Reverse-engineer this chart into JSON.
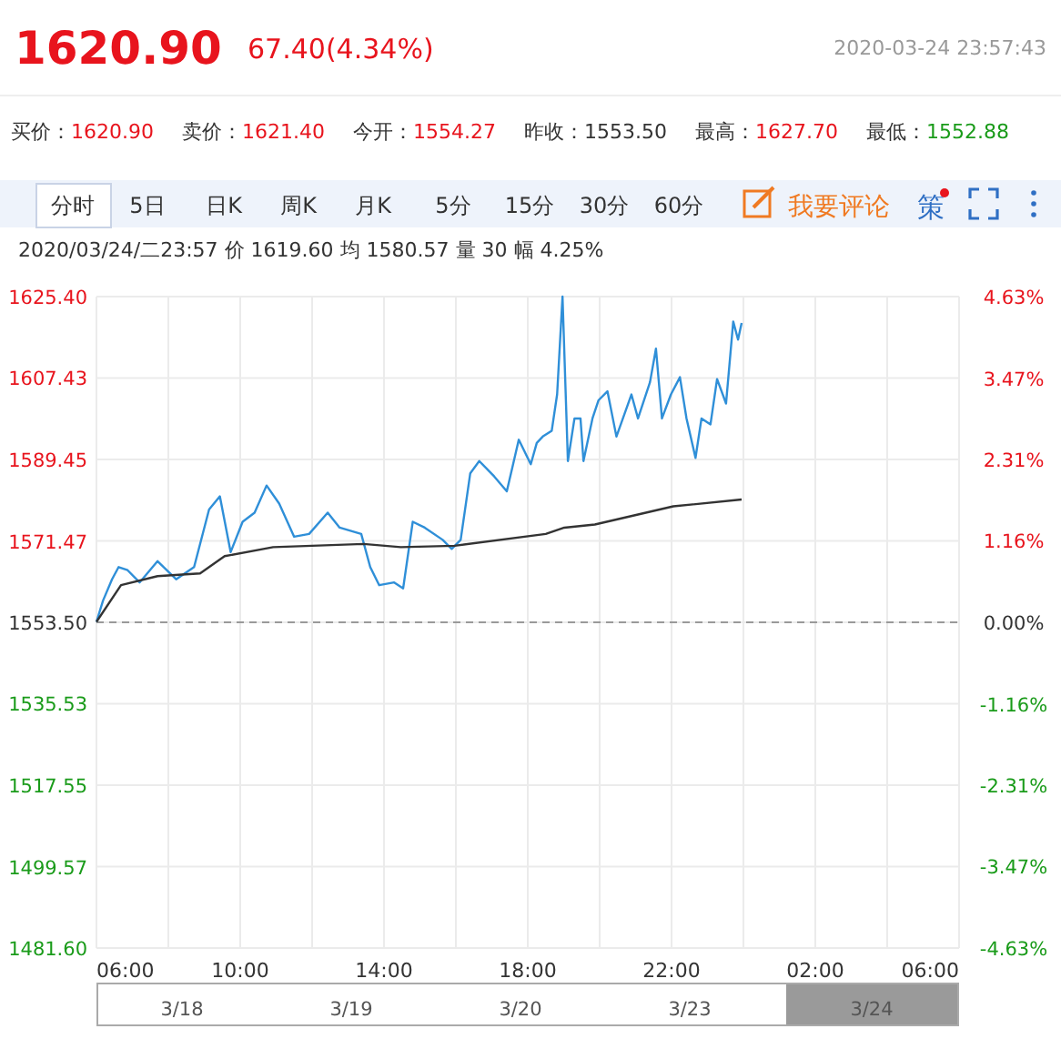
{
  "chart_data": {
    "type": "line",
    "title": "1620.90",
    "subtitle": "67.40(4.34%)",
    "annotations": [
      "2020-03-24 23:57:43",
      "买价：1620.90",
      "卖价：1621.40",
      "今开：1554.27",
      "昨收：1553.50",
      "最高：1627.70",
      "最低：1552.88",
      "分时",
      "5日",
      "日K",
      "周K",
      "月K",
      "5分",
      "15分",
      "30分",
      "60分",
      "我要评论",
      "策",
      "2020/03/24/二23:57  价 1619.60  均 1580.57  量 30  幅 4.25%",
      "3/18",
      "3/19",
      "3/20",
      "3/23",
      "3/24"
    ],
    "xlim": [
      "2020-03-24T06:00",
      "2020-03-25T06:00"
    ],
    "xticks": [
      {
        "value": "2020-03-24T06:00",
        "label": "06:00"
      },
      {
        "value": "2020-03-24T08:00",
        "label": null
      },
      {
        "value": "2020-03-24T10:00",
        "label": "10:00"
      },
      {
        "value": "2020-03-24T12:00",
        "label": null
      },
      {
        "value": "2020-03-24T14:00",
        "label": "14:00"
      },
      {
        "value": "2020-03-24T16:00",
        "label": null
      },
      {
        "value": "2020-03-24T18:00",
        "label": "18:00"
      },
      {
        "value": "2020-03-24T20:00",
        "label": null
      },
      {
        "value": "2020-03-24T22:00",
        "label": "22:00"
      },
      {
        "value": "2020-03-25T00:00",
        "label": null
      },
      {
        "value": "2020-03-25T02:00",
        "label": "02:00"
      },
      {
        "value": "2020-03-25T04:00",
        "label": null
      },
      {
        "value": "2020-03-25T06:00",
        "label": "06:00"
      }
    ],
    "ylim": [
      1481.6,
      1625.4
    ],
    "yticks": [
      {
        "value": 1625.4,
        "label": "1625.40"
      },
      {
        "value": 1607.43,
        "label": "1607.43"
      },
      {
        "value": 1589.45,
        "label": "1589.45"
      },
      {
        "value": 1571.47,
        "label": "1571.47"
      },
      {
        "value": 1553.5,
        "label": "1553.50"
      },
      {
        "value": 1535.53,
        "label": "1535.53"
      },
      {
        "value": 1517.55,
        "label": "1517.55"
      },
      {
        "value": 1499.57,
        "label": "1499.57"
      },
      {
        "value": 1481.6,
        "label": "1481.60"
      }
    ],
    "y2lim": [
      -4.63,
      4.63
    ],
    "y2ticks": [
      {
        "value": 4.63,
        "label": "4.63%"
      },
      {
        "value": 3.47,
        "label": "3.47%"
      },
      {
        "value": 2.31,
        "label": "2.31%"
      },
      {
        "value": 1.16,
        "label": "1.16%"
      },
      {
        "value": 0,
        "label": "0.00%"
      },
      {
        "value": -1.16,
        "label": "-1.16%"
      },
      {
        "value": -2.31,
        "label": "-2.31%"
      },
      {
        "value": -3.47,
        "label": "-3.47%"
      },
      {
        "value": -4.63,
        "label": "-4.63%"
      }
    ],
    "grid": true,
    "ref_lines": [
      {
        "axis": "y",
        "value": 1553.5,
        "color": "#999999",
        "line_style": "dashed"
      }
    ],
    "series": [
      {
        "color": "#2f8fd8",
        "x": [
          "2020-03-24T06:00",
          "2020-03-24T06:11",
          "2020-03-24T06:26",
          "2020-03-24T06:37",
          "2020-03-24T06:52",
          "2020-03-24T07:12",
          "2020-03-24T07:42",
          "2020-03-24T08:13",
          "2020-03-24T08:43",
          "2020-03-24T09:08",
          "2020-03-24T09:26",
          "2020-03-24T09:44",
          "2020-03-24T10:04",
          "2020-03-24T10:24",
          "2020-03-24T10:44",
          "2020-03-24T11:05",
          "2020-03-24T11:30",
          "2020-03-24T11:55",
          "2020-03-24T12:26",
          "2020-03-24T12:46",
          "2020-03-24T13:22",
          "2020-03-24T13:37",
          "2020-03-24T13:52",
          "2020-03-24T14:17",
          "2020-03-24T14:32",
          "2020-03-24T14:48",
          "2020-03-24T15:08",
          "2020-03-24T15:38",
          "2020-03-24T15:53",
          "2020-03-24T16:08",
          "2020-03-24T16:24",
          "2020-03-24T16:39",
          "2020-03-24T17:04",
          "2020-03-24T17:25",
          "2020-03-24T17:45",
          "2020-03-24T18:05",
          "2020-03-24T18:15",
          "2020-03-24T18:25",
          "2020-03-24T18:40",
          "2020-03-24T18:49",
          "2020-03-24T18:58",
          "2020-03-24T19:07",
          "2020-03-24T19:18",
          "2020-03-24T19:28",
          "2020-03-24T19:33",
          "2020-03-24T19:48",
          "2020-03-24T19:58",
          "2020-03-24T20:13",
          "2020-03-24T20:28",
          "2020-03-24T20:53",
          "2020-03-24T21:04",
          "2020-03-24T21:24",
          "2020-03-24T21:34",
          "2020-03-24T21:44",
          "2020-03-24T21:59",
          "2020-03-24T22:14",
          "2020-03-24T22:25",
          "2020-03-24T22:40",
          "2020-03-24T22:50",
          "2020-03-24T23:05",
          "2020-03-24T23:16",
          "2020-03-24T23:31",
          "2020-03-24T23:43",
          "2020-03-24T23:51",
          "2020-03-24T23:57"
        ],
        "values": [
          1553.6,
          1558.3,
          1563,
          1565.7,
          1565,
          1562.3,
          1567,
          1563,
          1565.7,
          1578.4,
          1581.3,
          1569,
          1575.7,
          1577.7,
          1583.7,
          1579.7,
          1572.4,
          1573,
          1577.7,
          1574.4,
          1573,
          1565.7,
          1561.7,
          1562.3,
          1561,
          1575.7,
          1574.4,
          1571.7,
          1569.7,
          1571.7,
          1586.4,
          1589.1,
          1585.7,
          1582.4,
          1593.8,
          1588.4,
          1593.1,
          1594.5,
          1595.8,
          1603.8,
          1625.4,
          1589.1,
          1598.5,
          1598.5,
          1589.1,
          1598.5,
          1602.5,
          1604.5,
          1594.5,
          1603.8,
          1598.5,
          1606.5,
          1613.9,
          1598.5,
          1603.8,
          1607.6,
          1598.5,
          1589.8,
          1598.5,
          1597.2,
          1607.2,
          1601.8,
          1619.9,
          1615.9,
          1619.6
        ]
      },
      {
        "color": "#333333",
        "x": [
          "2020-03-24T06:00",
          "2020-03-24T06:41",
          "2020-03-24T07:42",
          "2020-03-24T08:53",
          "2020-03-24T09:34",
          "2020-03-24T10:55",
          "2020-03-24T13:26",
          "2020-03-24T14:28",
          "2020-03-24T15:58",
          "2020-03-24T18:30",
          "2020-03-24T19:01",
          "2020-03-24T19:52",
          "2020-03-24T22:03",
          "2020-03-24T23:57"
        ],
        "values": [
          1553.6,
          1561.7,
          1563.7,
          1564.3,
          1568.1,
          1570.1,
          1570.8,
          1570.1,
          1570.4,
          1573,
          1574.4,
          1575.1,
          1579.1,
          1580.6
        ]
      }
    ]
  }
}
